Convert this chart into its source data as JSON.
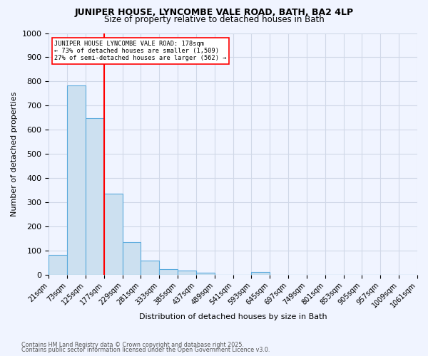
{
  "title": "JUNIPER HOUSE, LYNCOMBE VALE ROAD, BATH, BA2 4LP",
  "subtitle": "Size of property relative to detached houses in Bath",
  "xlabel": "Distribution of detached houses by size in Bath",
  "ylabel": "Number of detached properties",
  "footnote1": "Contains HM Land Registry data © Crown copyright and database right 2025.",
  "footnote2": "Contains public sector information licensed under the Open Government Licence v3.0.",
  "bin_labels": [
    "21sqm",
    "73sqm",
    "125sqm",
    "177sqm",
    "229sqm",
    "281sqm",
    "333sqm",
    "385sqm",
    "437sqm",
    "489sqm",
    "541sqm",
    "593sqm",
    "645sqm",
    "697sqm",
    "749sqm",
    "801sqm",
    "853sqm",
    "905sqm",
    "957sqm",
    "1009sqm",
    "1061sqm"
  ],
  "bar_values": [
    83,
    783,
    648,
    335,
    135,
    58,
    22,
    17,
    9,
    0,
    0,
    11,
    0,
    0,
    0,
    0,
    0,
    0,
    0,
    0
  ],
  "bar_color": "#cce0f0",
  "bar_edge_color": "#5aaadd",
  "grid_color": "#d0d8e8",
  "red_line_x": 3,
  "annotation_text_line1": "JUNIPER HOUSE LYNCOMBE VALE ROAD: 178sqm",
  "annotation_text_line2": "← 73% of detached houses are smaller (1,509)",
  "annotation_text_line3": "27% of semi-detached houses are larger (562) →",
  "ylim": [
    0,
    1000
  ],
  "yticks": [
    0,
    100,
    200,
    300,
    400,
    500,
    600,
    700,
    800,
    900,
    1000
  ],
  "background_color": "#f0f4ff",
  "plot_background": "#f0f4ff"
}
